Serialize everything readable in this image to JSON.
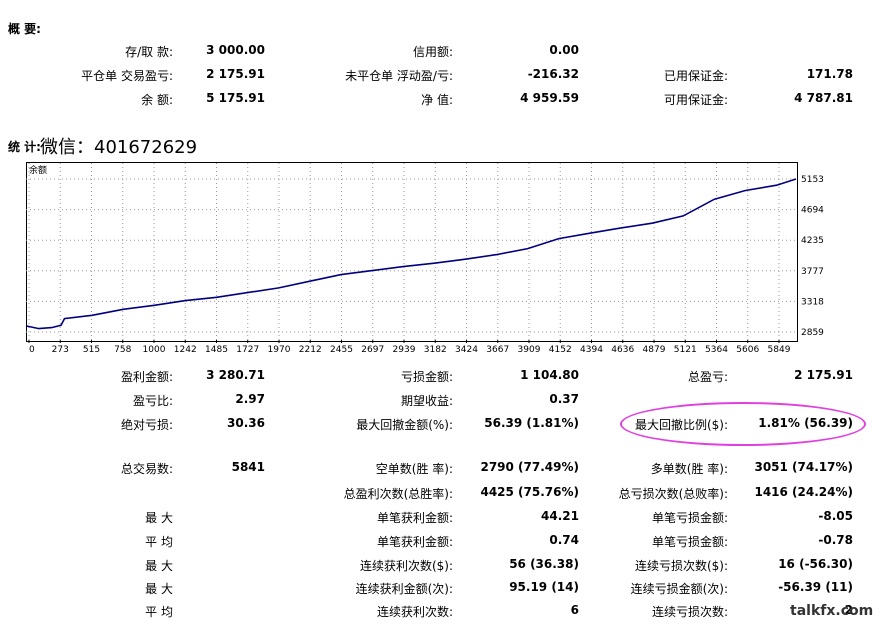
{
  "summary": {
    "title": "概 要:",
    "rows": [
      [
        {
          "label": "存/取 款:",
          "value": "3 000.00"
        },
        {
          "label": "信用额:",
          "value": "0.00"
        },
        {
          "label": "",
          "value": ""
        }
      ],
      [
        {
          "label": "平仓单 交易盈亏:",
          "value": "2 175.91"
        },
        {
          "label": "未平仓单 浮动盈/亏:",
          "value": "-216.32"
        },
        {
          "label": "已用保证金:",
          "value": "171.78"
        }
      ],
      [
        {
          "label": "余 额:",
          "value": "5 175.91"
        },
        {
          "label": "净 值:",
          "value": "4 959.59"
        },
        {
          "label": "可用保证金:",
          "value": "4 787.81"
        }
      ]
    ]
  },
  "stats": {
    "title": "统 计:",
    "wechat": "微信：401672629"
  },
  "chart_data": {
    "type": "line",
    "title": "余额",
    "xlabel": "",
    "ylabel": "",
    "x_ticks": [
      "0",
      "273",
      "515",
      "758",
      "1000",
      "1242",
      "1485",
      "1727",
      "1970",
      "2212",
      "2455",
      "2697",
      "2939",
      "3182",
      "3424",
      "3667",
      "3909",
      "4152",
      "4394",
      "4636",
      "4879",
      "5121",
      "5364",
      "5606",
      "5849"
    ],
    "y_ticks": [
      "5153",
      "4694",
      "4235",
      "3777",
      "3318",
      "2859"
    ],
    "xlim": [
      0,
      6000
    ],
    "ylim": [
      2859,
      5153
    ],
    "grid": true,
    "series": [
      {
        "name": "",
        "color": "#000080",
        "x": [
          0,
          100,
          200,
          273,
          300,
          515,
          758,
          1000,
          1242,
          1485,
          1727,
          1970,
          2212,
          2455,
          2697,
          2939,
          3182,
          3424,
          3667,
          3909,
          4152,
          4394,
          4636,
          4879,
          5121,
          5364,
          5606,
          5849,
          6000
        ],
        "y": [
          2950,
          2910,
          2925,
          2960,
          3060,
          3110,
          3200,
          3260,
          3330,
          3380,
          3450,
          3520,
          3620,
          3720,
          3780,
          3840,
          3890,
          3950,
          4020,
          4110,
          4260,
          4340,
          4420,
          4490,
          4600,
          4850,
          4980,
          5060,
          5153
        ]
      }
    ]
  },
  "bottom": {
    "rows": [
      [
        {
          "label": "盈利金额:",
          "value": "3 280.71"
        },
        {
          "label": "亏损金额:",
          "value": "1 104.80"
        },
        {
          "label": "总盈亏:",
          "value": "2 175.91"
        }
      ],
      [
        {
          "label": "盈亏比:",
          "value": "2.97"
        },
        {
          "label": "期望收益:",
          "value": "0.37"
        },
        {
          "label": "",
          "value": ""
        }
      ],
      [
        {
          "label": "绝对亏损:",
          "value": "30.36"
        },
        {
          "label": "最大回撤金额(%):",
          "value": "56.39 (1.81%)"
        },
        {
          "label": "最大回撤比例($):",
          "value": "1.81% (56.39)"
        }
      ],
      [
        {
          "label": "总交易数:",
          "value": "5841"
        },
        {
          "label": "空单数(胜 率):",
          "value": "2790 (77.49%)"
        },
        {
          "label": "多单数(胜 率):",
          "value": "3051 (74.17%)"
        }
      ],
      [
        {
          "label": "",
          "value": ""
        },
        {
          "label": "总盈利次数(总胜率):",
          "value": "4425 (75.76%)"
        },
        {
          "label": "总亏损次数(总败率):",
          "value": "1416 (24.24%)"
        }
      ],
      [
        {
          "label": "最 大",
          "value": ""
        },
        {
          "label": "单笔获利金额:",
          "value": "44.21"
        },
        {
          "label": "单笔亏损金额:",
          "value": "-8.05"
        }
      ],
      [
        {
          "label": "平 均",
          "value": ""
        },
        {
          "label": "单笔获利金额:",
          "value": "0.74"
        },
        {
          "label": "单笔亏损金额:",
          "value": "-0.78"
        }
      ],
      [
        {
          "label": "最 大",
          "value": ""
        },
        {
          "label": "连续获利次数($):",
          "value": "56 (36.38)"
        },
        {
          "label": "连续亏损次数($):",
          "value": "16 (-56.30)"
        }
      ],
      [
        {
          "label": "最 大",
          "value": ""
        },
        {
          "label": "连续获利金额(次):",
          "value": "95.19 (14)"
        },
        {
          "label": "连续亏损金额(次):",
          "value": "-56.39 (11)"
        }
      ],
      [
        {
          "label": "平 均",
          "value": ""
        },
        {
          "label": "连续获利次数:",
          "value": "6"
        },
        {
          "label": "连续亏损次数:",
          "value": "2"
        }
      ]
    ]
  },
  "watermark": "talkfx.com"
}
